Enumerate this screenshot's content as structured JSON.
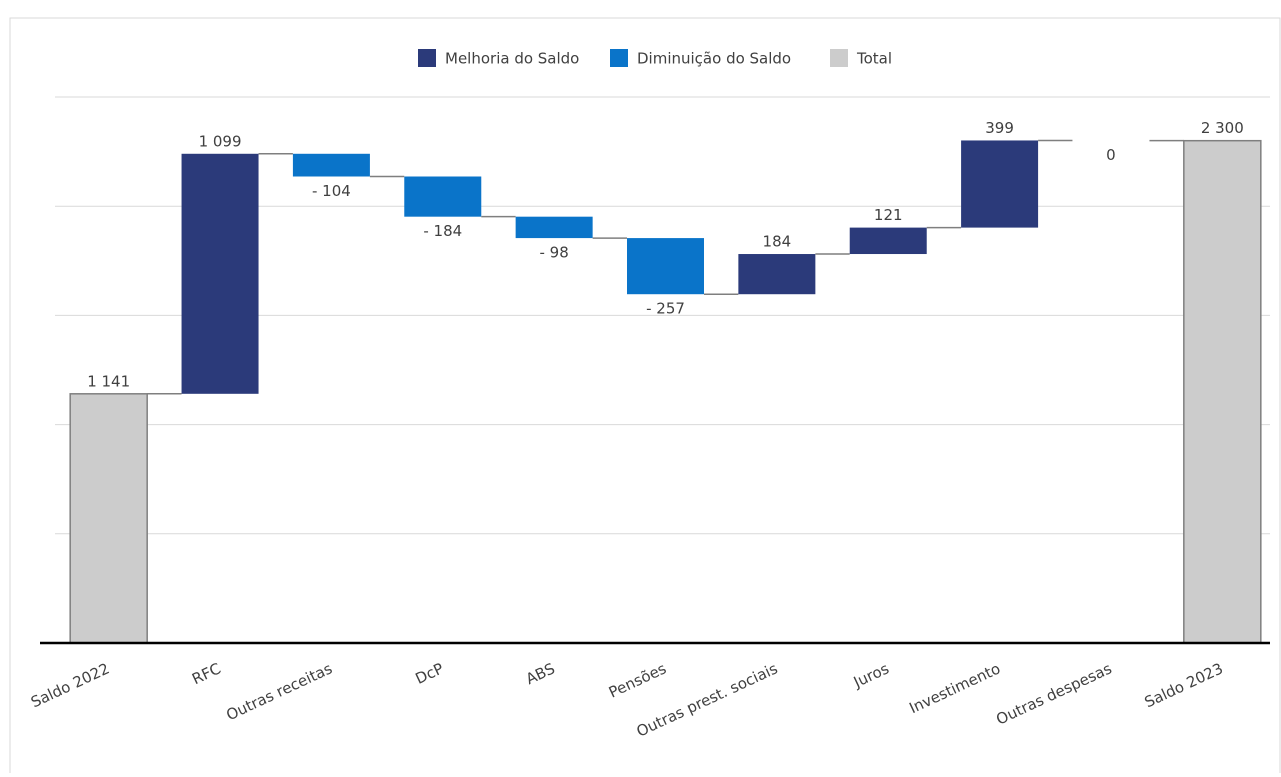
{
  "chart_data": {
    "type": "waterfall",
    "categories": [
      "Saldo 2022",
      "RFC",
      "Outras receitas",
      "DcP",
      "ABS",
      "Pensões",
      "Outras prest. sociais",
      "Juros",
      "Investimento",
      "Outras despesas",
      "Saldo 2023"
    ],
    "series": [
      {
        "name": "Melhoria do Saldo",
        "color": "#2b3a7a",
        "values": [
          null,
          1099,
          null,
          null,
          null,
          null,
          184,
          121,
          399,
          0,
          null
        ],
        "value_labels": [
          null,
          "1 099",
          null,
          null,
          null,
          null,
          "184",
          "121",
          "399",
          "0",
          null
        ]
      },
      {
        "name": "Diminuição do Saldo",
        "color": "#0a74c9",
        "values": [
          null,
          null,
          -104,
          -184,
          -98,
          -257,
          null,
          null,
          null,
          null,
          null
        ],
        "value_labels": [
          null,
          null,
          "- 104",
          "- 184",
          "- 98",
          "- 257",
          null,
          null,
          null,
          null,
          null
        ]
      },
      {
        "name": "Total",
        "color": "#cccccc",
        "values": [
          1141,
          null,
          null,
          null,
          null,
          null,
          null,
          null,
          null,
          null,
          2300
        ],
        "value_labels": [
          "1 141",
          null,
          null,
          null,
          null,
          null,
          null,
          null,
          null,
          null,
          "2 300"
        ]
      }
    ],
    "ylim": [
      0,
      2500
    ],
    "yticks": [
      0,
      500,
      1000,
      1500,
      2000,
      2500
    ],
    "grid": true
  }
}
